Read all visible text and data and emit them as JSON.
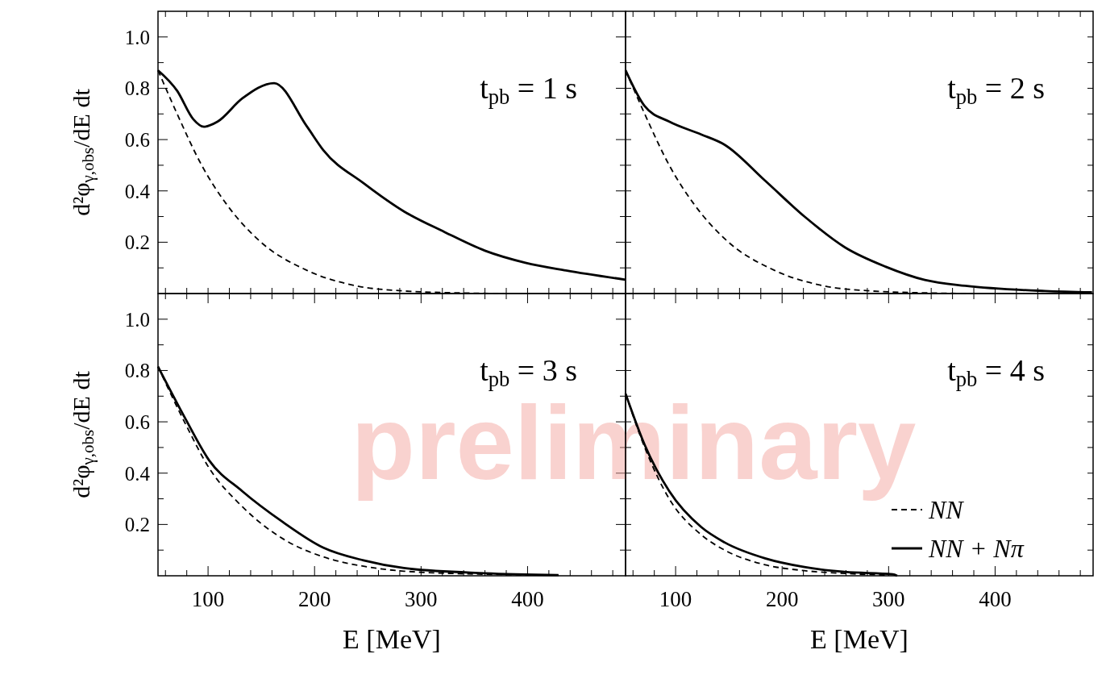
{
  "chart_data": [
    {
      "type": "line",
      "ylabel": "d²φ$_{γ,obs}$/dE dt",
      "annotations": [
        "t$_{pb}$ = 1 s"
      ],
      "xlim": [
        53,
        492
      ],
      "ylim": [
        0,
        1.1
      ],
      "tick_labels": "y",
      "legend": false,
      "grid": false,
      "xticks": [
        {
          "value": 60,
          "label": null
        },
        {
          "value": 80,
          "label": null
        },
        {
          "value": 100,
          "label": null
        },
        {
          "value": 120,
          "label": null
        },
        {
          "value": 140,
          "label": null
        },
        {
          "value": 160,
          "label": null
        },
        {
          "value": 180,
          "label": null
        },
        {
          "value": 200,
          "label": null
        },
        {
          "value": 220,
          "label": null
        },
        {
          "value": 240,
          "label": null
        },
        {
          "value": 260,
          "label": null
        },
        {
          "value": 280,
          "label": null
        },
        {
          "value": 300,
          "label": null
        },
        {
          "value": 320,
          "label": null
        },
        {
          "value": 340,
          "label": null
        },
        {
          "value": 360,
          "label": null
        },
        {
          "value": 380,
          "label": null
        },
        {
          "value": 400,
          "label": null
        },
        {
          "value": 420,
          "label": null
        },
        {
          "value": 440,
          "label": null
        },
        {
          "value": 460,
          "label": null
        },
        {
          "value": 480,
          "label": null
        }
      ],
      "yticks": [
        {
          "value": 0.1,
          "label": null
        },
        0.2,
        {
          "value": 0.3,
          "label": null
        },
        0.4,
        {
          "value": 0.5,
          "label": null
        },
        0.6,
        {
          "value": 0.7,
          "label": null
        },
        0.8,
        {
          "value": 0.9,
          "label": null
        },
        {
          "value": 1.0,
          "label": "1.0"
        }
      ],
      "series": [
        {
          "color": "#000000",
          "line_style": "dashed",
          "x": [
            53,
            71,
            94,
            117,
            147,
            193,
            239,
            284,
            330,
            380
          ],
          "values": [
            0.87,
            0.7,
            0.5,
            0.35,
            0.21,
            0.09,
            0.03,
            0.01,
            0.003,
            0
          ]
        },
        {
          "color": "#000000",
          "line_style": "solid",
          "x": [
            53,
            71,
            86,
            96,
            109,
            132,
            162,
            193,
            208,
            246,
            284,
            322,
            360,
            398,
            436,
            492
          ],
          "values": [
            0.87,
            0.79,
            0.68,
            0.65,
            0.67,
            0.76,
            0.82,
            0.65,
            0.56,
            0.43,
            0.32,
            0.24,
            0.167,
            0.12,
            0.09,
            0.054
          ]
        }
      ]
    },
    {
      "type": "line",
      "annotations": [
        "t$_{pb}$ = 2 s"
      ],
      "xlim": [
        53,
        492
      ],
      "ylim": [
        0,
        1.1
      ],
      "tick_labels": false,
      "legend": false,
      "grid": false,
      "xticks": [
        {
          "value": 60,
          "label": null
        },
        {
          "value": 80,
          "label": null
        },
        {
          "value": 100,
          "label": null
        },
        {
          "value": 120,
          "label": null
        },
        {
          "value": 140,
          "label": null
        },
        {
          "value": 160,
          "label": null
        },
        {
          "value": 180,
          "label": null
        },
        {
          "value": 200,
          "label": null
        },
        {
          "value": 220,
          "label": null
        },
        {
          "value": 240,
          "label": null
        },
        {
          "value": 260,
          "label": null
        },
        {
          "value": 280,
          "label": null
        },
        {
          "value": 300,
          "label": null
        },
        {
          "value": 320,
          "label": null
        },
        {
          "value": 340,
          "label": null
        },
        {
          "value": 360,
          "label": null
        },
        {
          "value": 380,
          "label": null
        },
        {
          "value": 400,
          "label": null
        },
        {
          "value": 420,
          "label": null
        },
        {
          "value": 440,
          "label": null
        },
        {
          "value": 460,
          "label": null
        },
        {
          "value": 480,
          "label": null
        }
      ],
      "yticks": [
        {
          "value": 0.1,
          "label": null
        },
        {
          "value": 0.2,
          "label": null
        },
        {
          "value": 0.3,
          "label": null
        },
        {
          "value": 0.4,
          "label": null
        },
        {
          "value": 0.5,
          "label": null
        },
        {
          "value": 0.6,
          "label": null
        },
        {
          "value": 0.7,
          "label": null
        },
        {
          "value": 0.8,
          "label": null
        },
        {
          "value": 0.9,
          "label": null
        },
        {
          "value": 1.0,
          "label": null
        }
      ],
      "series": [
        {
          "color": "#000000",
          "line_style": "dashed",
          "x": [
            53,
            71,
            94,
            117,
            147,
            193,
            239,
            284,
            330,
            380
          ],
          "values": [
            0.87,
            0.7,
            0.5,
            0.35,
            0.21,
            0.09,
            0.03,
            0.01,
            0.003,
            0
          ]
        },
        {
          "color": "#000000",
          "line_style": "solid",
          "x": [
            53,
            71,
            94,
            124,
            146,
            184,
            221,
            259,
            297,
            334,
            372,
            447,
            491
          ],
          "values": [
            0.87,
            0.73,
            0.67,
            0.62,
            0.58,
            0.44,
            0.3,
            0.18,
            0.105,
            0.053,
            0.03,
            0.01,
            0.005
          ]
        }
      ]
    },
    {
      "type": "line",
      "ylabel": "d²φ$_{γ,obs}$/dE dt",
      "xlabel": "E [MeV]",
      "annotations": [
        "t$_{pb}$ = 3 s",
        "preliminary"
      ],
      "xlim": [
        53,
        492
      ],
      "ylim": [
        0,
        1.1
      ],
      "legend": false,
      "grid": false,
      "xticks": [
        {
          "value": 60,
          "label": null
        },
        {
          "value": 80,
          "label": null
        },
        100,
        {
          "value": 120,
          "label": null
        },
        {
          "value": 140,
          "label": null
        },
        {
          "value": 160,
          "label": null
        },
        {
          "value": 180,
          "label": null
        },
        200,
        {
          "value": 220,
          "label": null
        },
        {
          "value": 240,
          "label": null
        },
        {
          "value": 260,
          "label": null
        },
        {
          "value": 280,
          "label": null
        },
        300,
        {
          "value": 320,
          "label": null
        },
        {
          "value": 340,
          "label": null
        },
        {
          "value": 360,
          "label": null
        },
        {
          "value": 380,
          "label": null
        },
        400,
        {
          "value": 420,
          "label": null
        },
        {
          "value": 440,
          "label": null
        },
        {
          "value": 460,
          "label": null
        },
        {
          "value": 480,
          "label": null
        }
      ],
      "yticks": [
        {
          "value": 0.1,
          "label": null
        },
        0.2,
        {
          "value": 0.3,
          "label": null
        },
        0.4,
        {
          "value": 0.5,
          "label": null
        },
        0.6,
        {
          "value": 0.7,
          "label": null
        },
        0.8,
        {
          "value": 0.9,
          "label": null
        },
        {
          "value": 1.0,
          "label": "1.0"
        }
      ],
      "series": [
        {
          "color": "#000000",
          "line_style": "dashed",
          "x": [
            53,
            79,
            101,
            132,
            170,
            208,
            246,
            284,
            360,
            429
          ],
          "values": [
            0.815,
            0.59,
            0.42,
            0.27,
            0.145,
            0.074,
            0.037,
            0.018,
            0.006,
            0.003
          ]
        },
        {
          "color": "#000000",
          "line_style": "solid",
          "x": [
            53,
            79,
            101,
            132,
            170,
            208,
            246,
            284,
            360,
            429
          ],
          "values": [
            0.815,
            0.61,
            0.45,
            0.33,
            0.21,
            0.11,
            0.06,
            0.03,
            0.01,
            0.003
          ]
        }
      ]
    },
    {
      "type": "line",
      "xlabel": "E [MeV]",
      "annotations": [
        "t$_{pb}$ = 4 s"
      ],
      "xlim": [
        53,
        492
      ],
      "ylim": [
        0,
        1.1
      ],
      "tick_labels": "x",
      "legend": "bottom right",
      "grid": false,
      "xticks": [
        {
          "value": 60,
          "label": null
        },
        {
          "value": 80,
          "label": null
        },
        100,
        {
          "value": 120,
          "label": null
        },
        {
          "value": 140,
          "label": null
        },
        {
          "value": 160,
          "label": null
        },
        {
          "value": 180,
          "label": null
        },
        200,
        {
          "value": 220,
          "label": null
        },
        {
          "value": 240,
          "label": null
        },
        {
          "value": 260,
          "label": null
        },
        {
          "value": 280,
          "label": null
        },
        300,
        {
          "value": 320,
          "label": null
        },
        {
          "value": 340,
          "label": null
        },
        {
          "value": 360,
          "label": null
        },
        {
          "value": 380,
          "label": null
        },
        400,
        {
          "value": 420,
          "label": null
        },
        {
          "value": 440,
          "label": null
        },
        {
          "value": 460,
          "label": null
        },
        {
          "value": 480,
          "label": null
        }
      ],
      "yticks": [
        {
          "value": 0.1,
          "label": null
        },
        {
          "value": 0.2,
          "label": null
        },
        {
          "value": 0.3,
          "label": null
        },
        {
          "value": 0.4,
          "label": null
        },
        {
          "value": 0.5,
          "label": null
        },
        {
          "value": 0.6,
          "label": null
        },
        {
          "value": 0.7,
          "label": null
        },
        {
          "value": 0.8,
          "label": null
        },
        {
          "value": 0.9,
          "label": null
        },
        {
          "value": 1.0,
          "label": null
        }
      ],
      "series": [
        {
          "name": "NN",
          "color": "#000000",
          "line_style": "dashed",
          "x": [
            53,
            71,
            94,
            124,
            146,
            184,
            221,
            259,
            297
          ],
          "values": [
            0.71,
            0.5,
            0.3,
            0.16,
            0.1,
            0.043,
            0.02,
            0.009,
            0.003
          ]
        },
        {
          "name": "NN + Nπ",
          "color": "#000000",
          "line_style": "solid",
          "x": [
            53,
            71,
            94,
            124,
            146,
            184,
            221,
            259,
            304,
            308
          ],
          "values": [
            0.71,
            0.51,
            0.33,
            0.19,
            0.13,
            0.068,
            0.034,
            0.015,
            0.006,
            0
          ]
        }
      ]
    }
  ]
}
